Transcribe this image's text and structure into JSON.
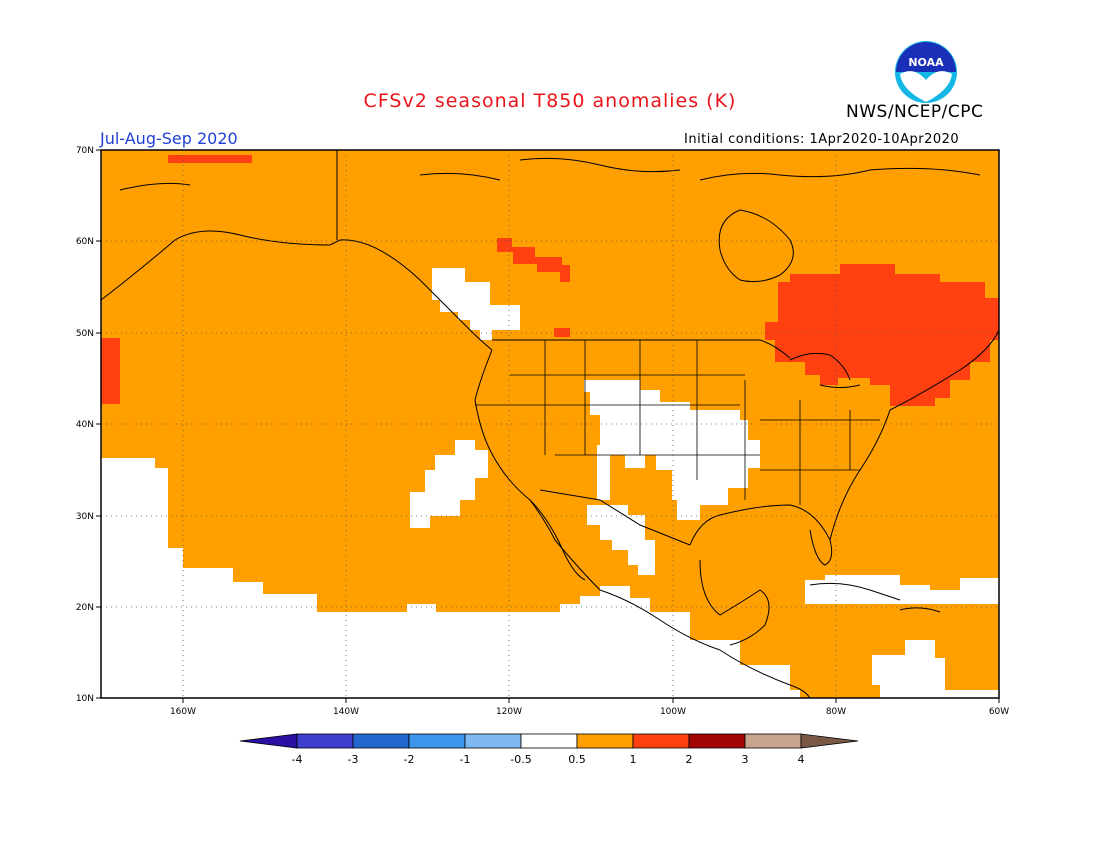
{
  "header": {
    "title": "CFSv2 seasonal T850 anomalies (K)",
    "agency": "NWS/NCEP/CPC",
    "logo_text": "NOAA",
    "season": "Jul-Aug-Sep 2020",
    "initial_conditions": "Initial conditions: 1Apr2020-10Apr2020"
  },
  "map": {
    "projection": "lat-lon",
    "lat_range": [
      10,
      70
    ],
    "lon_range": [
      -170,
      -60
    ],
    "lat_labels": [
      "70N",
      "60N",
      "50N",
      "40N",
      "30N",
      "20N",
      "10N"
    ],
    "lon_labels": [
      "160W",
      "140W",
      "120W",
      "100W",
      "80W",
      "60W"
    ],
    "grid": "dotted",
    "base_anomaly_color": "#ff9f00"
  },
  "colorbar": {
    "labels": [
      "-4",
      "-3",
      "-2",
      "-1",
      "-0.5",
      "0.5",
      "1",
      "2",
      "3",
      "4"
    ],
    "colors": [
      "#2b0fa3",
      "#3f3fcf",
      "#2266d0",
      "#3b95ec",
      "#7eb9f2",
      "#ffffff",
      "#ff9f00",
      "#ff4010",
      "#a30404",
      "#c8a48e",
      "#7a5846"
    ]
  }
}
